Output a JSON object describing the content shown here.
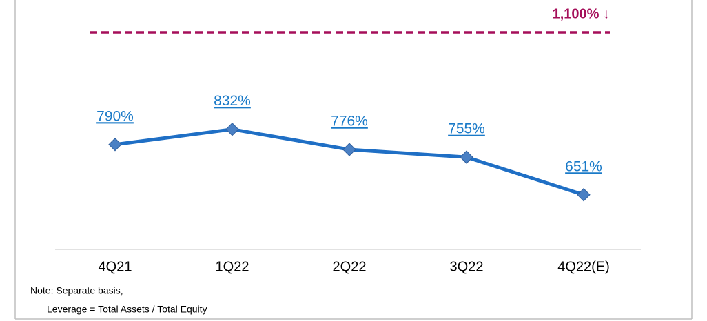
{
  "chart_data": {
    "type": "line",
    "categories": [
      "4Q21",
      "1Q22",
      "2Q22",
      "3Q22",
      "4Q22(E)"
    ],
    "series": [
      {
        "values": [
          790,
          832,
          776,
          755,
          651
        ],
        "value_labels": [
          "790%",
          "832%",
          "776%",
          "755%",
          "651%"
        ],
        "color": "#1f6fc5",
        "marker_color": "#4a80c4"
      }
    ],
    "ylim": [
      500,
      1150
    ],
    "reference_line": {
      "value": 1100,
      "label": "1,100% ↓",
      "color": "#a50f5a"
    },
    "notes": [
      "Note: Separate basis,",
      "Leverage = Total Assets / Total Equity"
    ]
  }
}
